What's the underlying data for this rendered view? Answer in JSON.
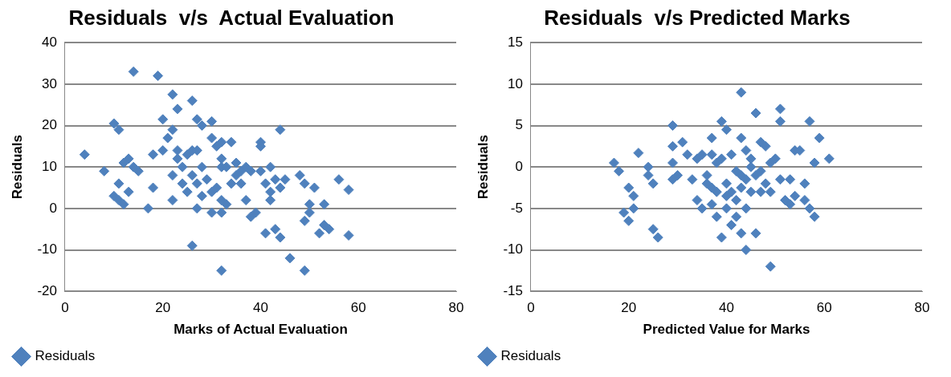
{
  "chart_data": [
    {
      "type": "scatter",
      "title": "Residuals  v/s  Actual Evaluation",
      "xlabel": "Marks of Actual Evaluation",
      "ylabel": "Residuals",
      "xlim": [
        0,
        80
      ],
      "xticks": [
        0,
        20,
        40,
        60,
        80
      ],
      "ylim": [
        -20,
        40
      ],
      "yticks": [
        -20,
        -10,
        0,
        10,
        20,
        30,
        40
      ],
      "grid": "y",
      "legend": "bottom left",
      "marker": "diamond",
      "series": [
        {
          "name": "Residuals",
          "color": "#4f81bd",
          "x": [
            4,
            8,
            10,
            11,
            10,
            11,
            11,
            12,
            12,
            13,
            13,
            14,
            14,
            15,
            17,
            18,
            18,
            19,
            20,
            20,
            21,
            22,
            22,
            22,
            22,
            23,
            23,
            23,
            24,
            24,
            25,
            25,
            26,
            26,
            26,
            26,
            27,
            27,
            27,
            27,
            28,
            28,
            28,
            29,
            30,
            30,
            30,
            30,
            31,
            31,
            32,
            32,
            32,
            32,
            32,
            32,
            33,
            33,
            34,
            34,
            35,
            35,
            36,
            37,
            37,
            38,
            38,
            39,
            40,
            40,
            40,
            41,
            41,
            42,
            42,
            42,
            43,
            43,
            44,
            44,
            44,
            45,
            46,
            48,
            49,
            49,
            49,
            50,
            50,
            51,
            52,
            53,
            53,
            56,
            58,
            58,
            54,
            36
          ],
          "values": [
            13,
            9,
            20.5,
            19,
            3,
            2,
            6,
            11,
            1,
            12,
            4,
            33,
            10,
            9,
            0,
            5,
            13,
            32,
            21.5,
            14,
            17,
            27.5,
            19,
            8,
            2,
            24,
            14,
            12,
            10,
            6,
            13,
            4,
            26,
            14,
            8,
            -9,
            21.5,
            14,
            6,
            0,
            20,
            10,
            3,
            7,
            21,
            17,
            4,
            -1,
            15,
            5,
            16,
            12,
            10,
            2,
            -1,
            -15,
            10,
            1,
            16,
            6,
            11,
            8,
            6,
            10,
            2,
            9,
            -2,
            -1,
            16,
            15,
            9,
            6,
            -6,
            10,
            4,
            2,
            7,
            -5,
            19,
            5,
            -7,
            7,
            -12,
            8,
            6,
            -3,
            -15,
            1,
            -1,
            5,
            -6,
            -4,
            1,
            7,
            4.5,
            -6.5,
            -5,
            9
          ]
        }
      ]
    },
    {
      "type": "scatter",
      "title": "Residuals  v/s Predicted Marks",
      "xlabel": "Predicted Value for Marks",
      "ylabel": "Residuals",
      "xlim": [
        0,
        80
      ],
      "xticks": [
        0,
        20,
        40,
        60,
        80
      ],
      "ylim": [
        -15,
        15
      ],
      "yticks": [
        -15,
        -10,
        -5,
        0,
        5,
        10,
        15
      ],
      "grid": "y",
      "legend": "bottom left",
      "marker": "diamond",
      "series": [
        {
          "name": "Residuals",
          "color": "#4f81bd",
          "x": [
            17,
            18,
            19,
            20,
            20,
            21,
            21,
            22,
            24,
            24,
            25,
            25,
            26,
            29,
            29,
            29,
            29,
            30,
            31,
            32,
            33,
            34,
            34,
            35,
            35,
            36,
            36,
            37,
            37,
            37,
            38,
            38,
            38,
            39,
            39,
            39,
            40,
            40,
            40,
            41,
            41,
            41,
            42,
            42,
            42,
            43,
            43,
            43,
            43,
            44,
            44,
            44,
            45,
            45,
            45,
            46,
            46,
            46,
            47,
            47,
            48,
            48,
            49,
            49,
            49,
            50,
            51,
            51,
            51,
            52,
            53,
            53,
            54,
            54,
            55,
            56,
            56,
            57,
            57,
            58,
            58,
            59,
            61,
            47,
            43,
            37,
            40,
            44
          ],
          "values": [
            0.5,
            -0.5,
            -5.5,
            -2.5,
            -6.5,
            -3.5,
            -5,
            1.7,
            0,
            -1,
            -7.5,
            -2,
            -8.5,
            5,
            2.5,
            0.5,
            -1.5,
            -1,
            3,
            1.5,
            -1.5,
            1,
            -4,
            1.5,
            -5,
            -2,
            -1,
            3.5,
            1.5,
            -4.5,
            -3,
            -6,
            0.5,
            5.5,
            1,
            -8.5,
            4.5,
            -2,
            -5,
            -3,
            -7,
            1.5,
            -0.5,
            -4,
            -6,
            9,
            -2.5,
            -8,
            3.5,
            2,
            -10,
            -5,
            0,
            -3,
            1,
            6.5,
            -8,
            -1,
            3,
            -0.5,
            2.5,
            -2,
            -3,
            0.5,
            -12,
            1,
            7,
            -1.5,
            5.5,
            -4,
            -1.5,
            -4.5,
            2,
            -3.5,
            2,
            -2,
            -4,
            -5,
            5.5,
            0.5,
            -6,
            3.5,
            1,
            -3,
            -1,
            -2.5,
            -3.5,
            -1.5
          ]
        }
      ]
    }
  ]
}
